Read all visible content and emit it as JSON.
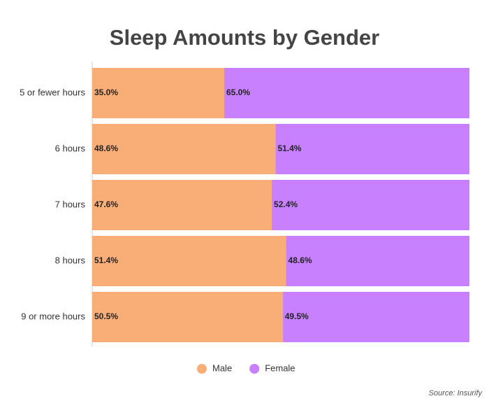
{
  "chart_data": {
    "type": "stacked_bar_horizontal",
    "title": "Sleep Amounts by Gender",
    "categories": [
      "5 or fewer hours",
      "6 hours",
      "7 hours",
      "8 hours",
      "9 or more hours"
    ],
    "series": [
      {
        "name": "Male",
        "color": "#f9ae78",
        "values": [
          35.0,
          48.6,
          47.6,
          51.4,
          50.5
        ],
        "value_labels": [
          "35.0%",
          "48.6%",
          "47.6%",
          "51.4%",
          "50.5%"
        ]
      },
      {
        "name": "Female",
        "color": "#c880ff",
        "values": [
          65.0,
          51.4,
          52.4,
          48.6,
          49.5
        ],
        "value_labels": [
          "65.0%",
          "51.4%",
          "52.4%",
          "48.6%",
          "49.5%"
        ]
      }
    ],
    "legend": "bottom",
    "source": "Source: Insurify"
  }
}
